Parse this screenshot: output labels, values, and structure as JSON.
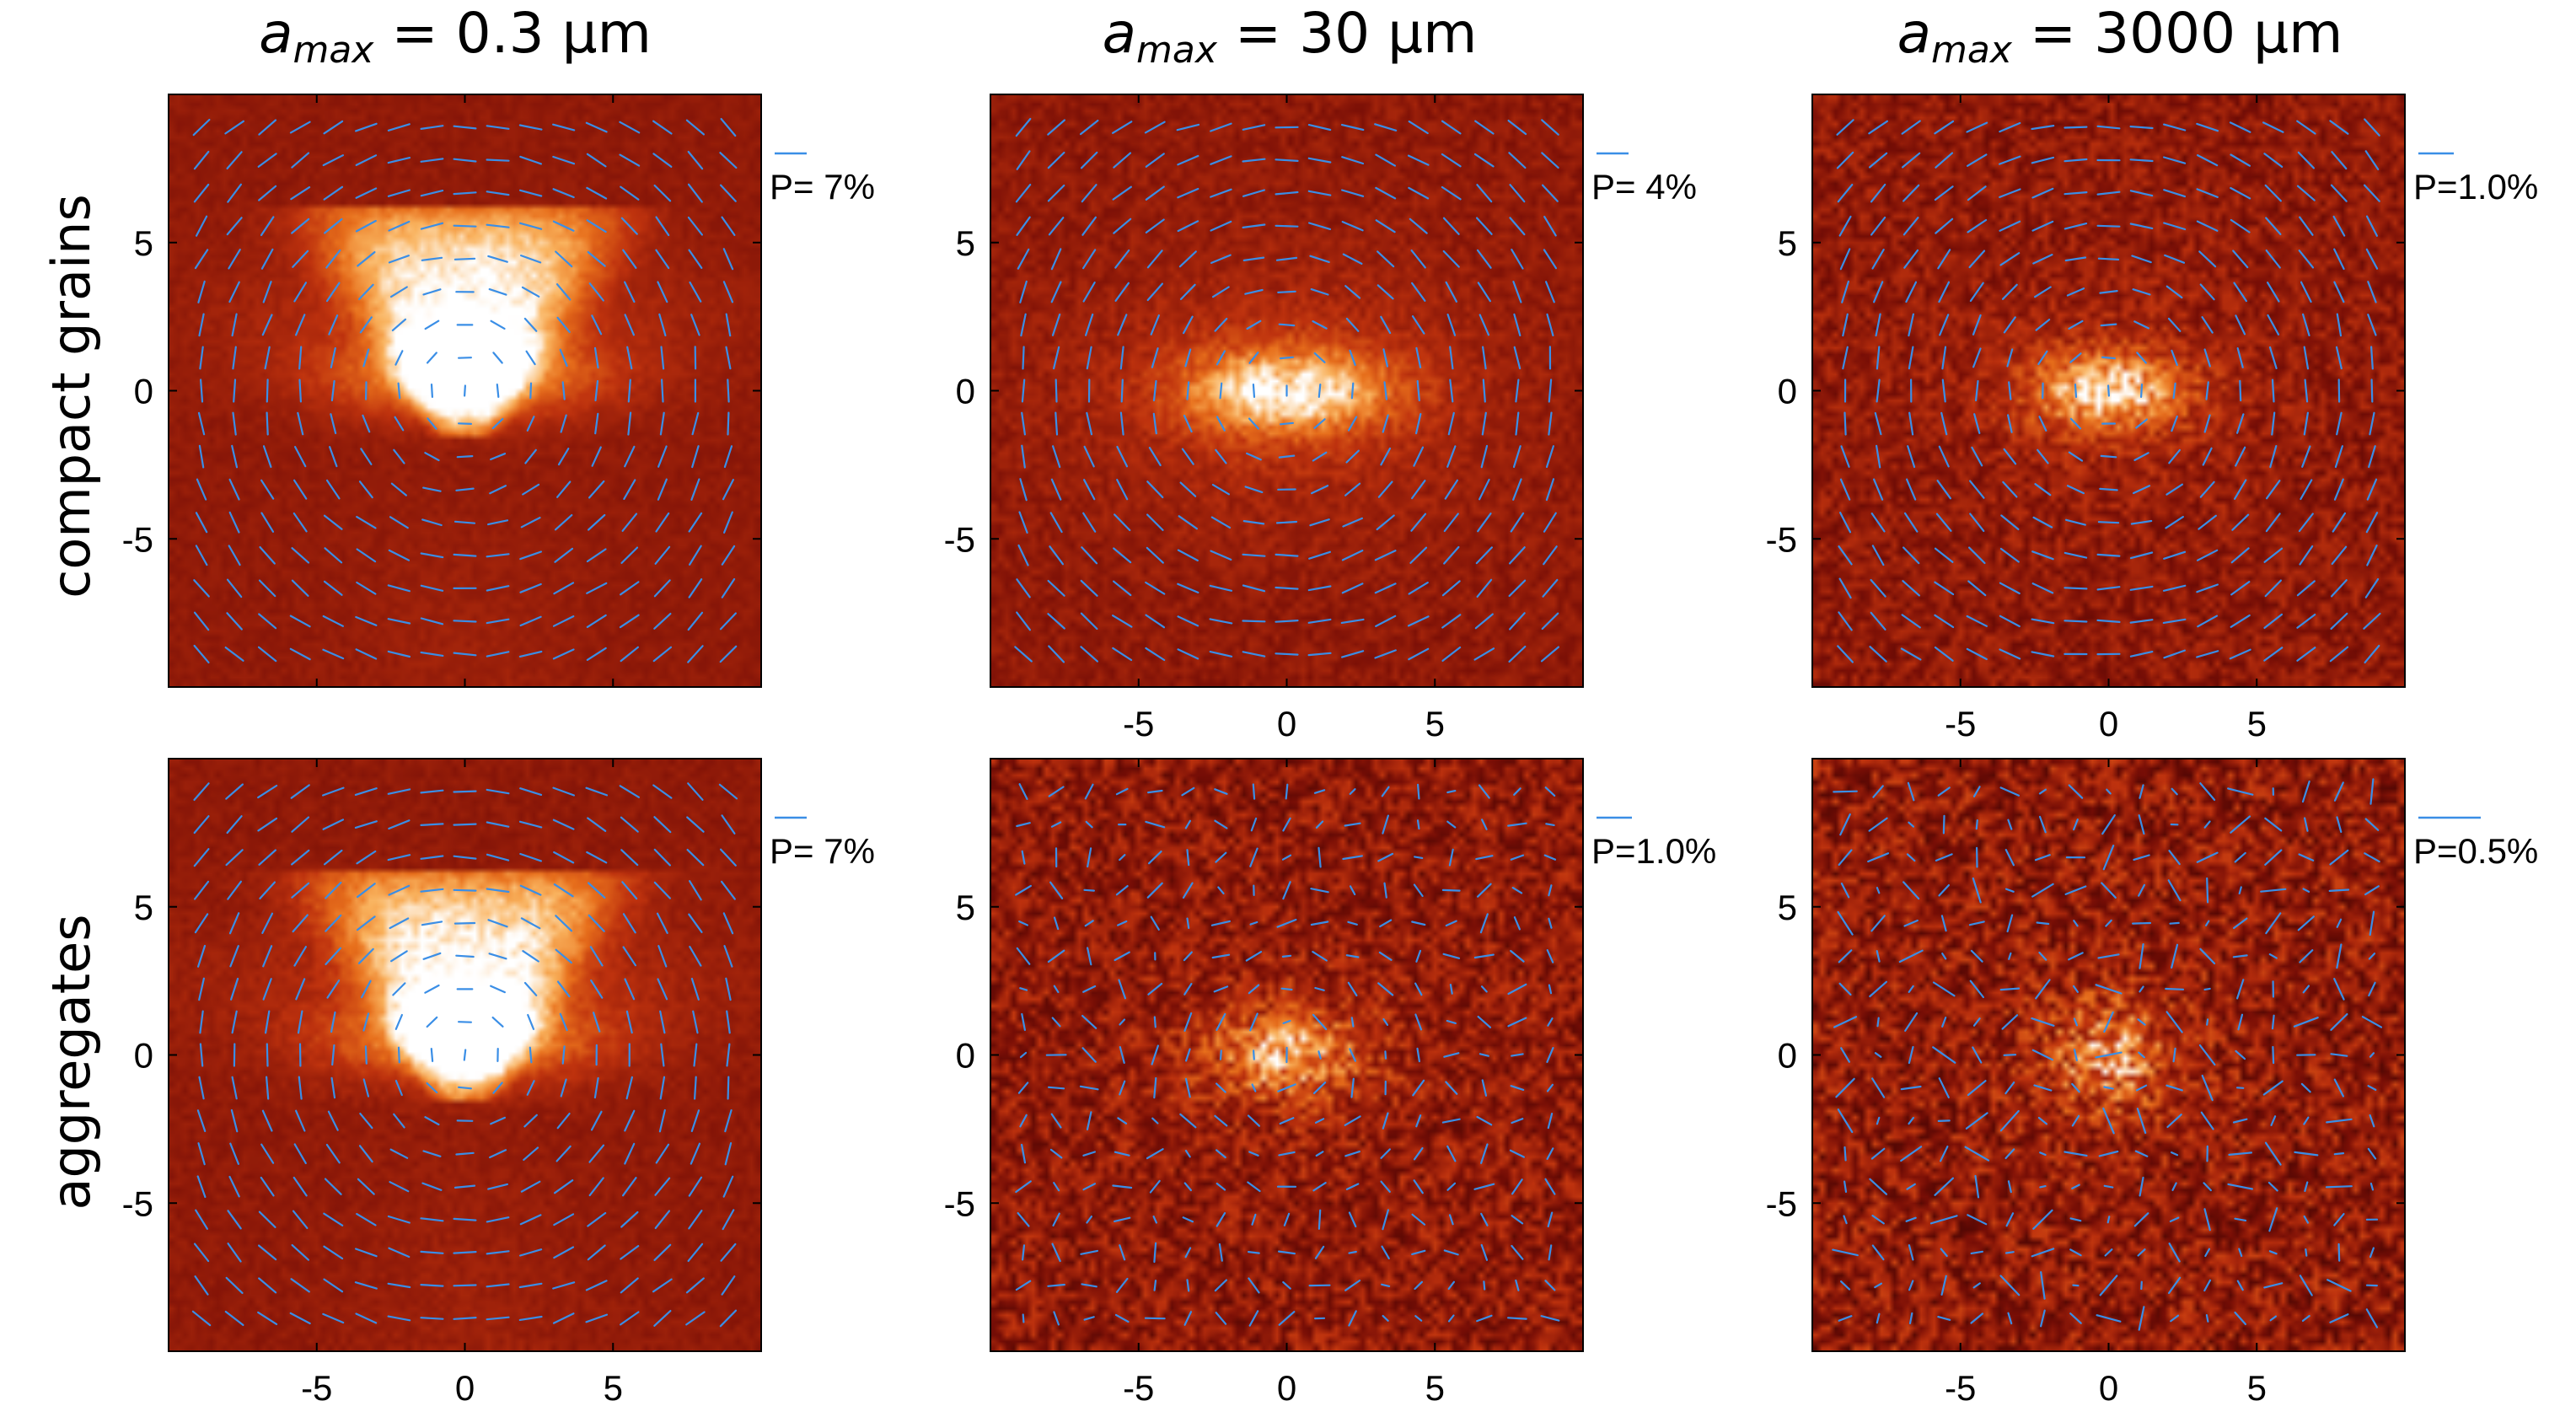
{
  "figure": {
    "col_titles": [
      {
        "sym": "a",
        "sub": "max",
        "rest": " = 0.3 μm"
      },
      {
        "sym": "a",
        "sub": "max",
        "rest": " = 30 μm"
      },
      {
        "sym": "a",
        "sub": "max",
        "rest": " = 3000 μm"
      }
    ],
    "row_labels": [
      "compact grains",
      "aggregates"
    ]
  },
  "colors": {
    "background": "#5a0a05",
    "core": "#ffffff",
    "vector": "#3a8ee6"
  },
  "chart_data": [
    {
      "type": "heatmap",
      "title": "compact grains, a_max = 0.3 μm",
      "row": 0,
      "col": 0,
      "morph": "cone",
      "noise": 0.05,
      "xlim": [
        -10,
        10
      ],
      "ylim": [
        -10,
        10
      ],
      "xticks": [
        -5,
        0,
        5
      ],
      "yticks": [
        -5,
        0,
        5
      ],
      "show_xticks": false,
      "polarization_label": "P= 7%",
      "polarization_percent": 7
    },
    {
      "type": "heatmap",
      "title": "compact grains, a_max = 30 μm",
      "row": 0,
      "col": 1,
      "morph": "disk",
      "noise": 0.1,
      "xlim": [
        -10,
        10
      ],
      "ylim": [
        -10,
        10
      ],
      "xticks": [
        -5,
        0,
        5
      ],
      "yticks": [
        -5,
        0,
        5
      ],
      "show_xticks": true,
      "polarization_label": "P= 4%",
      "polarization_percent": 4
    },
    {
      "type": "heatmap",
      "title": "compact grains, a_max = 3000 μm",
      "row": 0,
      "col": 2,
      "morph": "small",
      "noise": 0.18,
      "xlim": [
        -10,
        10
      ],
      "ylim": [
        -10,
        10
      ],
      "xticks": [
        -5,
        0,
        5
      ],
      "yticks": [
        -5,
        0,
        5
      ],
      "show_xticks": true,
      "polarization_label": "P=1.0%",
      "polarization_percent": 1.0
    },
    {
      "type": "heatmap",
      "title": "aggregates, a_max = 0.3 μm",
      "row": 1,
      "col": 0,
      "morph": "cone",
      "noise": 0.06,
      "xlim": [
        -10,
        10
      ],
      "ylim": [
        -10,
        10
      ],
      "xticks": [
        -5,
        0,
        5
      ],
      "yticks": [
        -5,
        0,
        5
      ],
      "show_xticks": true,
      "polarization_label": "P= 7%",
      "polarization_percent": 7
    },
    {
      "type": "heatmap",
      "title": "aggregates, a_max = 30 μm",
      "row": 1,
      "col": 1,
      "morph": "noisy",
      "noise": 0.25,
      "xlim": [
        -10,
        10
      ],
      "ylim": [
        -10,
        10
      ],
      "xticks": [
        -5,
        0,
        5
      ],
      "yticks": [
        -5,
        0,
        5
      ],
      "show_xticks": true,
      "polarization_label": "P=1.0%",
      "polarization_percent": 1.0
    },
    {
      "type": "heatmap",
      "title": "aggregates, a_max = 3000 μm",
      "row": 1,
      "col": 2,
      "morph": "blob",
      "noise": 0.3,
      "xlim": [
        -10,
        10
      ],
      "ylim": [
        -10,
        10
      ],
      "xticks": [
        -5,
        0,
        5
      ],
      "yticks": [
        -5,
        0,
        5
      ],
      "show_xticks": true,
      "polarization_label": "P=0.5%",
      "polarization_percent": 0.5
    }
  ]
}
